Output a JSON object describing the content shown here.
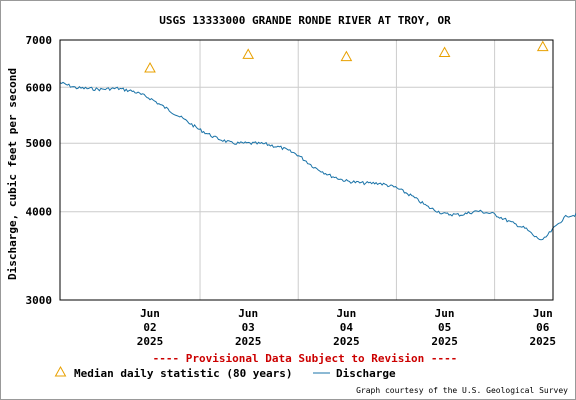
{
  "chart_data": {
    "type": "line",
    "title": "USGS 13333000 GRANDE RONDE RIVER AT TROY, OR",
    "ylabel": "Discharge, cubic feet per second",
    "xlabel": "",
    "y_scale": "log",
    "ylim": [
      3000,
      7000
    ],
    "y_ticks": [
      "7000",
      "6000",
      "5000",
      "4000",
      "3000"
    ],
    "x_range": [
      "2025-06-01T14:00",
      "2025-06-06T14:30"
    ],
    "x_ticks": [
      {
        "date": "2025-06-02",
        "line1": "Jun",
        "line2": "02",
        "line3": "2025"
      },
      {
        "date": "2025-06-03",
        "line1": "Jun",
        "line2": "03",
        "line3": "2025"
      },
      {
        "date": "2025-06-04",
        "line1": "Jun",
        "line2": "04",
        "line3": "2025"
      },
      {
        "date": "2025-06-05",
        "line1": "Jun",
        "line2": "05",
        "line3": "2025"
      },
      {
        "date": "2025-06-06",
        "line1": "Jun",
        "line2": "06",
        "line3": "2025"
      }
    ],
    "grid": true,
    "series": [
      {
        "name": "Discharge",
        "color": "#1a73a8",
        "points": [
          {
            "t": "2025-06-01T14:00",
            "v": 6090
          },
          {
            "t": "2025-06-01T18:00",
            "v": 5990
          },
          {
            "t": "2025-06-02T00:00",
            "v": 5960
          },
          {
            "t": "2025-06-02T04:00",
            "v": 5980
          },
          {
            "t": "2025-06-02T08:00",
            "v": 5920
          },
          {
            "t": "2025-06-02T12:00",
            "v": 5790
          },
          {
            "t": "2025-06-02T16:00",
            "v": 5600
          },
          {
            "t": "2025-06-02T20:00",
            "v": 5420
          },
          {
            "t": "2025-06-03T00:00",
            "v": 5230
          },
          {
            "t": "2025-06-03T04:00",
            "v": 5090
          },
          {
            "t": "2025-06-03T08:00",
            "v": 5000
          },
          {
            "t": "2025-06-03T12:00",
            "v": 5000
          },
          {
            "t": "2025-06-03T16:00",
            "v": 4990
          },
          {
            "t": "2025-06-03T20:00",
            "v": 4930
          },
          {
            "t": "2025-06-04T00:00",
            "v": 4820
          },
          {
            "t": "2025-06-04T04:00",
            "v": 4630
          },
          {
            "t": "2025-06-04T08:00",
            "v": 4500
          },
          {
            "t": "2025-06-04T12:00",
            "v": 4420
          },
          {
            "t": "2025-06-04T16:00",
            "v": 4390
          },
          {
            "t": "2025-06-04T20:00",
            "v": 4390
          },
          {
            "t": "2025-06-05T00:00",
            "v": 4330
          },
          {
            "t": "2025-06-05T04:00",
            "v": 4210
          },
          {
            "t": "2025-06-05T08:00",
            "v": 4060
          },
          {
            "t": "2025-06-05T12:00",
            "v": 3970
          },
          {
            "t": "2025-06-05T16:00",
            "v": 3960
          },
          {
            "t": "2025-06-05T20:00",
            "v": 4010
          },
          {
            "t": "2025-06-06T00:00",
            "v": 3970
          },
          {
            "t": "2025-06-06T04:00",
            "v": 3870
          },
          {
            "t": "2025-06-06T08:00",
            "v": 3780
          },
          {
            "t": "2025-06-06T10:00",
            "v": 3690
          },
          {
            "t": "2025-06-06T12:00",
            "v": 3640
          },
          {
            "t": "2025-06-06T14:00",
            "v": 3750
          },
          {
            "t": "2025-06-06T16:00",
            "v": 3860
          },
          {
            "t": "2025-06-06T18:00",
            "v": 3950
          },
          {
            "t": "2025-06-06T20:30",
            "v": 3960
          }
        ]
      },
      {
        "name": "Median daily statistic (80 years)",
        "color": "#e8a000",
        "marker": "triangle",
        "points": [
          {
            "t": "2025-06-02T12:00",
            "v": 6390
          },
          {
            "t": "2025-06-03T12:00",
            "v": 6680
          },
          {
            "t": "2025-06-04T12:00",
            "v": 6630
          },
          {
            "t": "2025-06-05T12:00",
            "v": 6720
          },
          {
            "t": "2025-06-06T12:00",
            "v": 6850
          }
        ]
      }
    ]
  },
  "notice": "---- Provisional Data Subject to Revision ----",
  "legend": {
    "median_label": "Median daily statistic (80 years)",
    "discharge_label": "Discharge"
  },
  "credit": "Graph courtesy of the U.S. Geological Survey",
  "colors": {
    "notice": "#cc0000",
    "grid": "#cccccc"
  }
}
